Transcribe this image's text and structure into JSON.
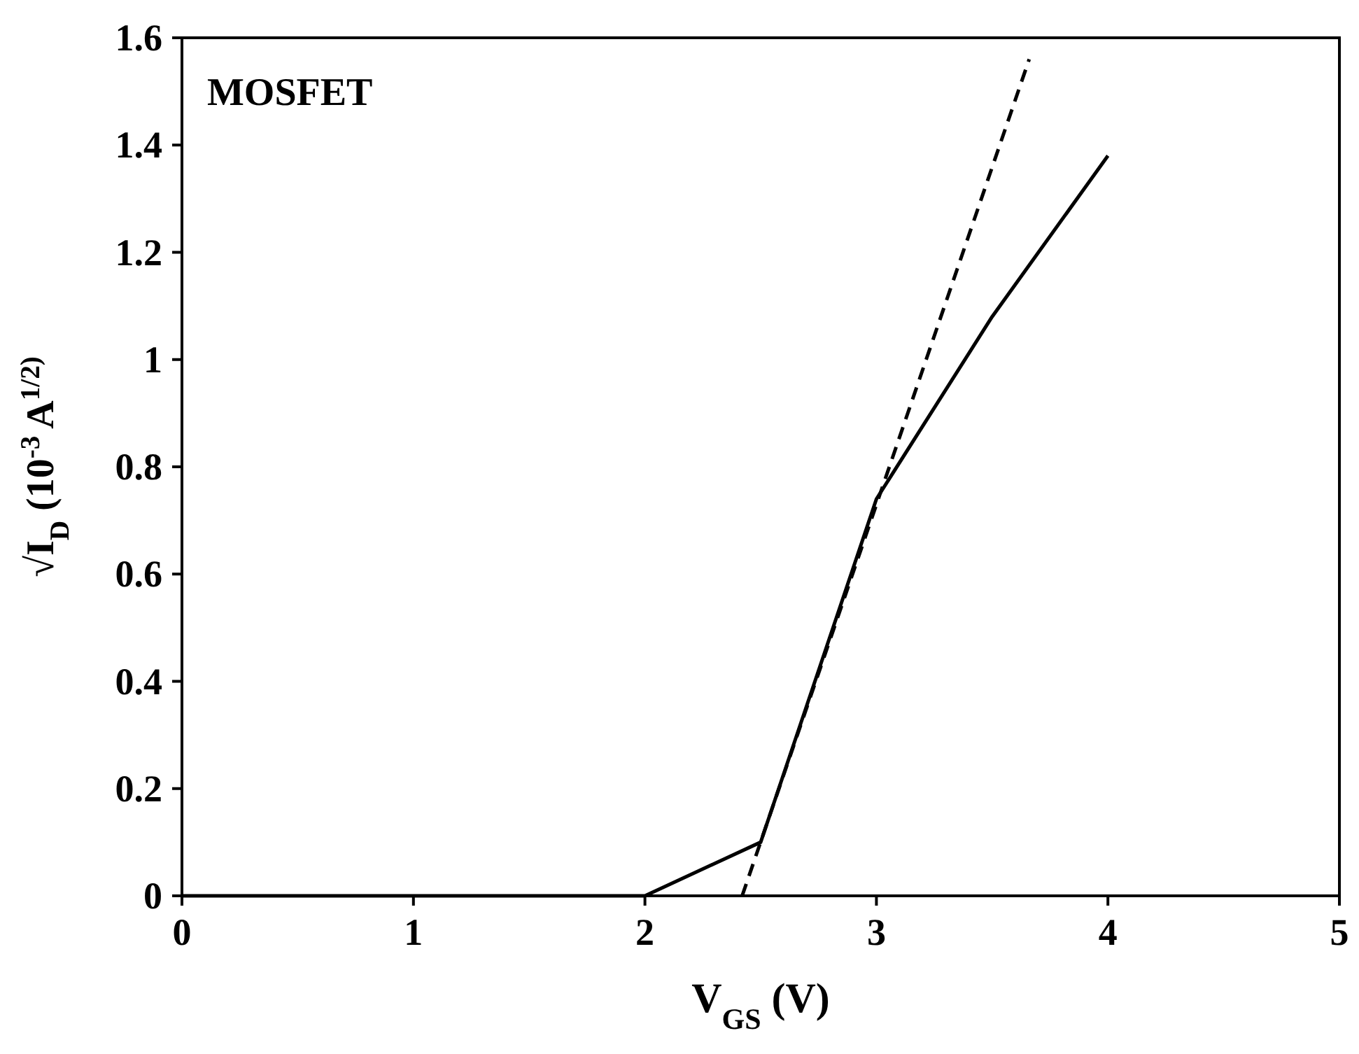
{
  "chart_data": {
    "type": "line",
    "xlabel": "V$_{GS}$ (V)",
    "ylabel": "√I$_{D}$ (10$^{-3 }$A$^{1/2)}$",
    "annotations": [
      "MOSFET"
    ],
    "xlim": [
      0,
      5
    ],
    "xticks": [
      0,
      1,
      2,
      3,
      4,
      5
    ],
    "ylim": [
      0,
      1.6
    ],
    "yticks": [
      0,
      0.2,
      0.4,
      0.6,
      0.8,
      1,
      1.2,
      1.4,
      1.6
    ],
    "grid": false,
    "marker": "none",
    "series": [
      {
        "color": "#000000",
        "line_style": "solid",
        "x": [
          0,
          2,
          2.5,
          3,
          3.5,
          4
        ],
        "values": [
          0,
          0,
          0.1,
          0.74,
          1.08,
          1.38
        ]
      },
      {
        "type": "line",
        "color": "#000000",
        "line_style": "dashed",
        "x": [
          2.42,
          3.66
        ],
        "values": [
          0,
          1.56
        ]
      }
    ]
  }
}
